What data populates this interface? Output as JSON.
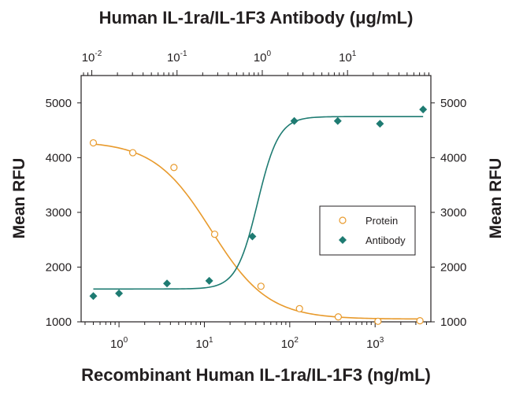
{
  "chart_data": {
    "type": "scatter",
    "title_top": "Human IL-1ra/IL-1F3 Antibody (μg/mL)",
    "xlabel": "Recombinant Human IL-1ra/IL-1F3 (ng/mL)",
    "ylabel_left": "Mean RFU",
    "ylabel_right": "Mean RFU",
    "x_scale": "log",
    "xlim": [
      0.36,
      4500
    ],
    "ylim": [
      1000,
      5500
    ],
    "top_axis": {
      "scale": "log",
      "xlim": [
        0.0075,
        95
      ],
      "ticks": [
        {
          "base": "10",
          "exp": "-2",
          "value": 0.01
        },
        {
          "base": "10",
          "exp": "-1",
          "value": 0.1
        },
        {
          "base": "10",
          "exp": "0",
          "value": 1
        },
        {
          "base": "10",
          "exp": "1",
          "value": 10
        }
      ]
    },
    "bottom_ticks": [
      {
        "base": "10",
        "exp": "0",
        "value": 1
      },
      {
        "base": "10",
        "exp": "1",
        "value": 10
      },
      {
        "base": "10",
        "exp": "2",
        "value": 100
      },
      {
        "base": "10",
        "exp": "3",
        "value": 1000
      }
    ],
    "y_ticks": [
      "1000",
      "2000",
      "3000",
      "4000",
      "5000"
    ],
    "y_tick_values": [
      1000,
      2000,
      3000,
      4000,
      5000
    ],
    "legend": {
      "placement": "right-middle",
      "entries": [
        "Protein",
        "Antibody"
      ]
    },
    "series": [
      {
        "name": "Protein",
        "color": "#e89a2c",
        "marker": "open-circle",
        "x": [
          0.5,
          1.45,
          4.4,
          13.2,
          46,
          130,
          370,
          1080,
          3350
        ],
        "y": [
          4270,
          4090,
          3820,
          2600,
          1650,
          1240,
          1090,
          1010,
          1020
        ],
        "fit": {
          "top": 4300,
          "bottom": 1050,
          "ec50": 12,
          "hill": 1.3
        }
      },
      {
        "name": "Antibody",
        "color": "#1e7b72",
        "marker": "filled-diamond",
        "x": [
          0.5,
          1.0,
          3.65,
          11.4,
          36.5,
          113,
          365,
          1140,
          3650
        ],
        "y": [
          1470,
          1520,
          1700,
          1750,
          2560,
          4670,
          4670,
          4620,
          4880
        ],
        "fit": {
          "top": 4750,
          "bottom": 1600,
          "ec50": 42,
          "hill": 3.5
        }
      }
    ]
  }
}
